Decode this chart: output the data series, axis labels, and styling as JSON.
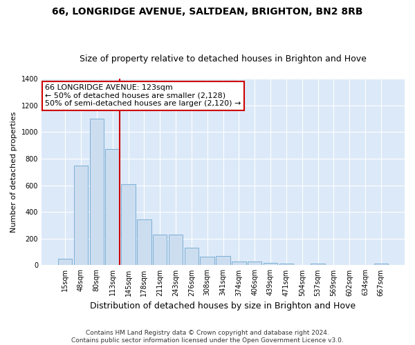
{
  "title1": "66, LONGRIDGE AVENUE, SALTDEAN, BRIGHTON, BN2 8RB",
  "title2": "Size of property relative to detached houses in Brighton and Hove",
  "xlabel": "Distribution of detached houses by size in Brighton and Hove",
  "ylabel": "Number of detached properties",
  "categories": [
    "15sqm",
    "48sqm",
    "80sqm",
    "113sqm",
    "145sqm",
    "178sqm",
    "211sqm",
    "243sqm",
    "276sqm",
    "308sqm",
    "341sqm",
    "374sqm",
    "406sqm",
    "439sqm",
    "471sqm",
    "504sqm",
    "537sqm",
    "569sqm",
    "602sqm",
    "634sqm",
    "667sqm"
  ],
  "values": [
    50,
    750,
    1100,
    870,
    610,
    345,
    228,
    228,
    130,
    65,
    72,
    28,
    28,
    20,
    13,
    0,
    10,
    0,
    0,
    0,
    12
  ],
  "bar_color": "#ccddf0",
  "bar_edge_color": "#7bafd4",
  "vline_x_index": 3,
  "vline_color": "#cc0000",
  "annotation_text": "66 LONGRIDGE AVENUE: 123sqm\n← 50% of detached houses are smaller (2,128)\n50% of semi-detached houses are larger (2,120) →",
  "annotation_box_facecolor": "#ffffff",
  "annotation_box_edgecolor": "#cc0000",
  "ylim": [
    0,
    1400
  ],
  "yticks": [
    0,
    200,
    400,
    600,
    800,
    1000,
    1200,
    1400
  ],
  "footer1": "Contains HM Land Registry data © Crown copyright and database right 2024.",
  "footer2": "Contains public sector information licensed under the Open Government Licence v3.0.",
  "plot_bg_color": "#dce9f8",
  "grid_color": "#ffffff",
  "title1_fontsize": 10,
  "title2_fontsize": 9,
  "xlabel_fontsize": 9,
  "ylabel_fontsize": 8,
  "footer_fontsize": 6.5,
  "tick_fontsize": 7,
  "annot_fontsize": 8
}
